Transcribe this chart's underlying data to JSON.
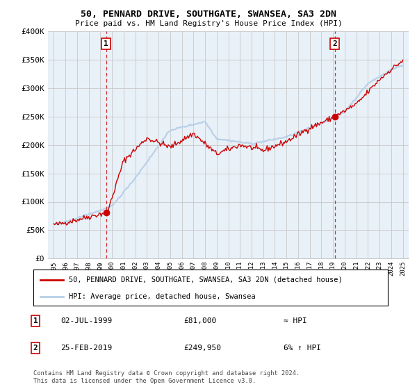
{
  "title": "50, PENNARD DRIVE, SOUTHGATE, SWANSEA, SA3 2DN",
  "subtitle": "Price paid vs. HM Land Registry's House Price Index (HPI)",
  "legend_line1": "50, PENNARD DRIVE, SOUTHGATE, SWANSEA, SA3 2DN (detached house)",
  "legend_line2": "HPI: Average price, detached house, Swansea",
  "annotation1_date": "02-JUL-1999",
  "annotation1_price": "£81,000",
  "annotation1_hpi": "≈ HPI",
  "annotation2_date": "25-FEB-2019",
  "annotation2_price": "£249,950",
  "annotation2_hpi": "6% ↑ HPI",
  "footnote": "Contains HM Land Registry data © Crown copyright and database right 2024.\nThis data is licensed under the Open Government Licence v3.0.",
  "sale1_year": 1999.5,
  "sale1_price": 81000,
  "sale2_year": 2019.15,
  "sale2_price": 249950,
  "ylim_min": 0,
  "ylim_max": 400000,
  "xlim_min": 1994.5,
  "xlim_max": 2025.5,
  "line_color": "#cc0000",
  "hpi_color": "#b8d0e8",
  "plot_bg_color": "#e8f0f8",
  "vline_color": "#cc0000",
  "background_color": "#ffffff",
  "grid_color": "#c8c8c8"
}
